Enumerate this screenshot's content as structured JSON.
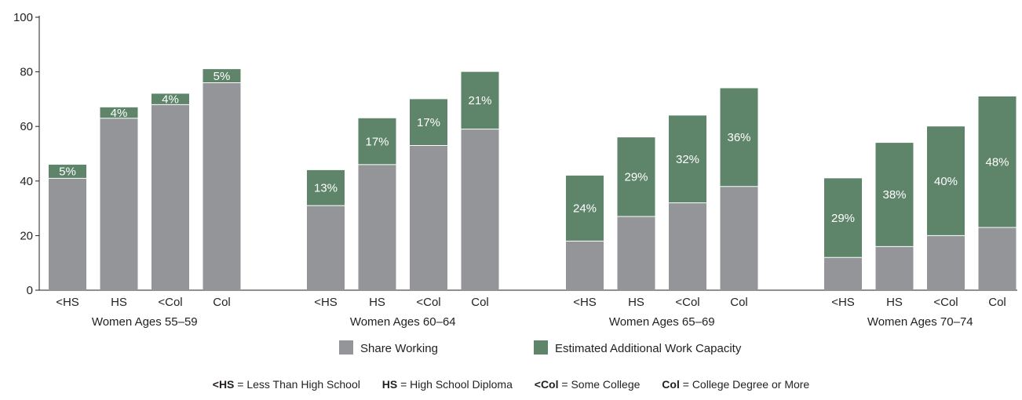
{
  "chart_data": {
    "type": "bar",
    "stacked": true,
    "ylim": [
      0,
      100
    ],
    "yticks": [
      0,
      20,
      40,
      60,
      80,
      100
    ],
    "grid": false,
    "colors": {
      "share": "#939598",
      "capacity": "#5e8569"
    },
    "groups": [
      {
        "label": "Women Ages 55–59",
        "categories": [
          "<HS",
          "HS",
          "<Col",
          "Col"
        ],
        "share": [
          41,
          63,
          68,
          76
        ],
        "total": [
          46,
          67,
          72,
          81
        ],
        "labels": [
          "5%",
          "4%",
          "4%",
          "5%"
        ]
      },
      {
        "label": "Women Ages 60–64",
        "categories": [
          "<HS",
          "HS",
          "<Col",
          "Col"
        ],
        "share": [
          31,
          46,
          53,
          59
        ],
        "total": [
          44,
          63,
          70,
          80
        ],
        "labels": [
          "13%",
          "17%",
          "17%",
          "21%"
        ]
      },
      {
        "label": "Women Ages 65–69",
        "categories": [
          "<HS",
          "HS",
          "<Col",
          "Col"
        ],
        "share": [
          18,
          27,
          32,
          38
        ],
        "total": [
          42,
          56,
          64,
          74
        ],
        "labels": [
          "24%",
          "29%",
          "32%",
          "36%"
        ]
      },
      {
        "label": "Women Ages 70–74",
        "categories": [
          "<HS",
          "HS",
          "<Col",
          "Col"
        ],
        "share": [
          12,
          16,
          20,
          23
        ],
        "total": [
          41,
          54,
          60,
          71
        ],
        "labels": [
          "29%",
          "38%",
          "40%",
          "48%"
        ]
      }
    ],
    "series": [
      {
        "name": "Share Working"
      },
      {
        "name": "Estimated Additional Work Capacity"
      }
    ],
    "legend_position": "bottom"
  },
  "footnote": [
    {
      "abbr": "<HS",
      "text": " = Less Than High School"
    },
    {
      "abbr": "HS",
      "text": " = High School Diploma"
    },
    {
      "abbr": "<Col",
      "text": " = Some College"
    },
    {
      "abbr": "Col",
      "text": " = College Degree or More"
    }
  ]
}
